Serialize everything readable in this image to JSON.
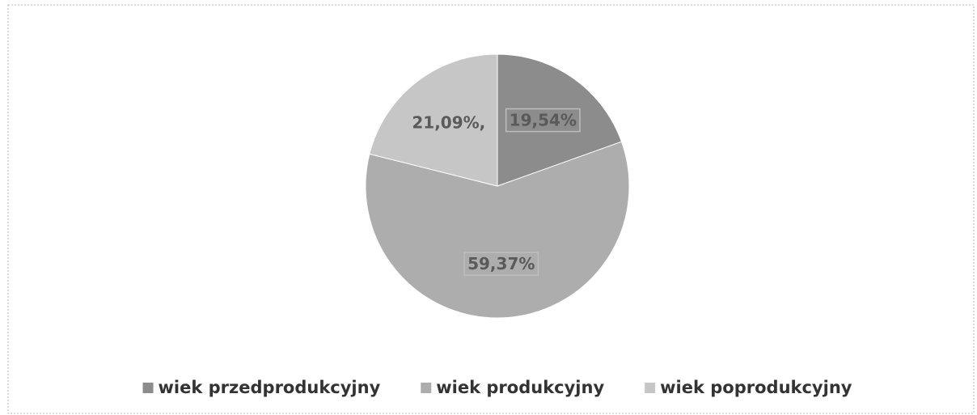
{
  "chart_data": {
    "type": "pie",
    "categories": [
      "wiek przedprodukcyjny",
      "wiek produkcyjny",
      "wiek poprodukcyjny"
    ],
    "values": [
      19.54,
      59.37,
      21.09
    ],
    "value_labels": [
      "19,54%",
      "59,37%",
      "21,09%,"
    ],
    "colors": [
      "#8c8c8c",
      "#adadad",
      "#c6c6c6"
    ],
    "legend": "bottom"
  }
}
